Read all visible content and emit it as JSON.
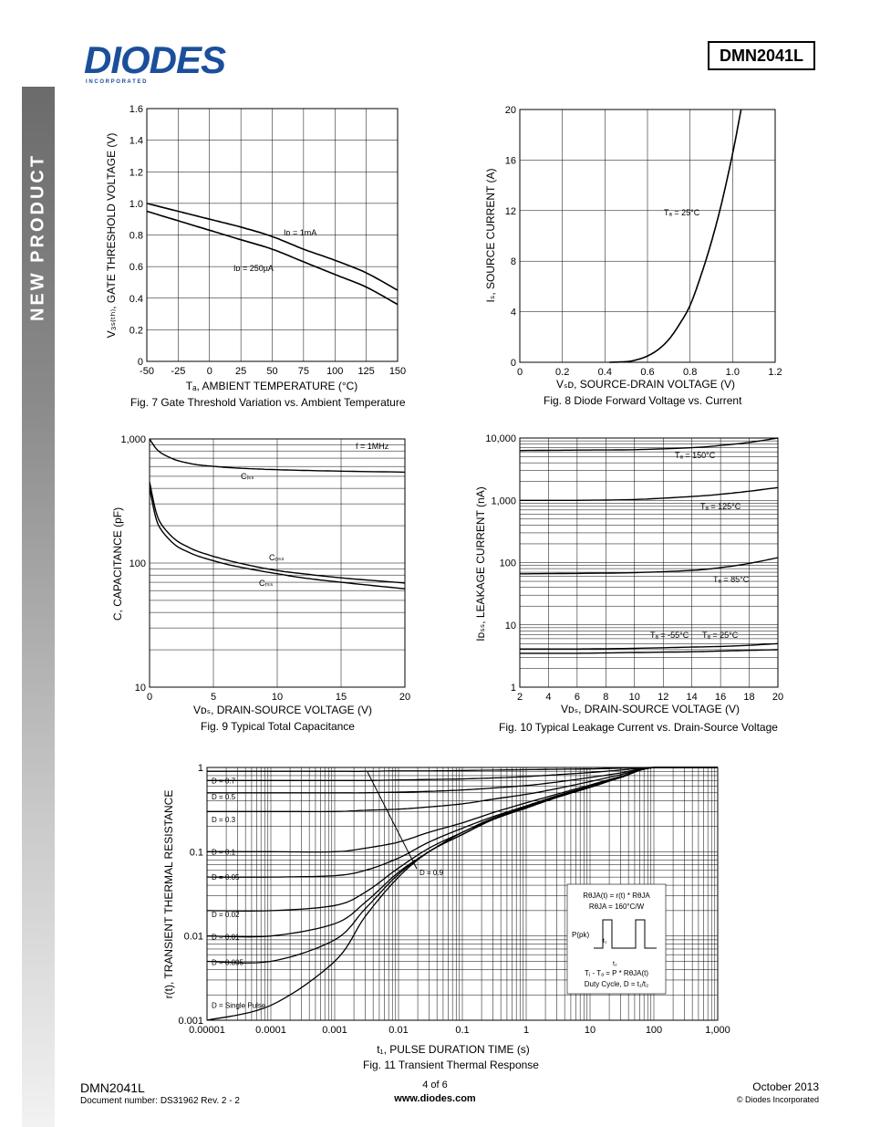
{
  "header": {
    "logo_text": "DIODES",
    "logo_sub": "I N C O R P O R A T E D",
    "part_number": "DMN2041L"
  },
  "sidebar": {
    "label": "NEW PRODUCT"
  },
  "figures": {
    "fig7": {
      "caption": "Fig. 7 Gate Threshold Variation vs. Ambient Temperature",
      "xlabel": "Tₐ, AMBIENT TEMPERATURE (°C)",
      "ylabel": "V₃ₛ₍ₜₕ₎, GATE THRESHOLD VOLTAGE (V)",
      "anno1": "Iᴅ = 1mA",
      "anno2": "Iᴅ = 250µA"
    },
    "fig8": {
      "caption": "Fig. 8 Diode Forward Voltage vs. Current",
      "xlabel": "Vₛᴅ, SOURCE-DRAIN VOLTAGE (V)",
      "ylabel": "Iₛ, SOURCE CURRENT (A)",
      "anno1": "Tₐ = 25°C"
    },
    "fig9": {
      "caption": "Fig. 9 Typical Total Capacitance",
      "xlabel": "Vᴅₛ, DRAIN-SOURCE VOLTAGE (V)",
      "ylabel": "C, CAPACITANCE (pF)",
      "anno_f": "f = 1MHz",
      "anno_ciss": "Cᵢₛₛ",
      "anno_coss": "Cₒₛₛ",
      "anno_crss": "Cᵣₛₛ"
    },
    "fig10": {
      "caption": "Fig. 10 Typical Leakage Current vs. Drain-Source Voltage",
      "xlabel": "Vᴅₛ, DRAIN-SOURCE VOLTAGE (V)",
      "ylabel": "Iᴅₛₛ, LEAKAGE CURRENT (nA)",
      "anno150": "Tₐ = 150°C",
      "anno125": "Tₐ = 125°C",
      "anno85": "Tₐ = 85°C",
      "anno_m55": "Tₐ = -55°C",
      "anno25": "Tₐ = 25°C"
    },
    "fig11": {
      "caption": "Fig. 11 Transient Thermal Response",
      "xlabel": "t₁, PULSE DURATION TIME (s)",
      "ylabel": "r(t), TRANSIENT THERMAL RESISTANCE",
      "box_l1": "RθJA(t) = r(t) * RθJA",
      "box_l2": "RθJA = 160°C/W",
      "box_ppk": "P(pk)",
      "box_t1": "t₁",
      "box_t2": "t₂",
      "box_l3": "Tⱼ - Tₐ = P * RθJA(t)",
      "box_l4": "Duty Cycle, D = t₁/t₂"
    }
  },
  "chart_data": [
    {
      "type": "line",
      "id": "fig7",
      "x": [
        -50,
        -25,
        0,
        25,
        50,
        75,
        100,
        125,
        150
      ],
      "xlim": [
        -50,
        150
      ],
      "ylim": [
        0,
        1.6
      ],
      "xticks": [
        "-50",
        "-25",
        "0",
        "25",
        "50",
        "75",
        "100",
        "125",
        "150"
      ],
      "yticks": [
        "0",
        "0.2",
        "0.4",
        "0.6",
        "0.8",
        "1.0",
        "1.2",
        "1.4",
        "1.6"
      ],
      "series": [
        {
          "name": "Iᴅ = 1mA",
          "values": [
            1.0,
            0.95,
            0.9,
            0.85,
            0.79,
            0.71,
            0.64,
            0.56,
            0.45
          ]
        },
        {
          "name": "Iᴅ = 250µA",
          "values": [
            0.95,
            0.89,
            0.83,
            0.77,
            0.71,
            0.63,
            0.55,
            0.47,
            0.36
          ]
        }
      ],
      "grid": true
    },
    {
      "type": "line",
      "id": "fig8",
      "xlim": [
        0,
        1.2
      ],
      "ylim": [
        0,
        20
      ],
      "xticks": [
        "0",
        "0.2",
        "0.4",
        "0.6",
        "0.8",
        "1.0",
        "1.2"
      ],
      "yticks": [
        "0",
        "4",
        "8",
        "12",
        "16",
        "20"
      ],
      "series": [
        {
          "name": "Tₐ = 25°C",
          "x": [
            0.42,
            0.5,
            0.55,
            0.6,
            0.65,
            0.7,
            0.75,
            0.8,
            0.85,
            0.9,
            0.95,
            1.0,
            1.04
          ],
          "values": [
            0,
            0.05,
            0.2,
            0.5,
            1.0,
            1.8,
            3.0,
            4.5,
            6.8,
            9.5,
            12.7,
            16.5,
            20
          ]
        }
      ],
      "grid": true
    },
    {
      "type": "line",
      "id": "fig9",
      "yscale": "log",
      "xlim": [
        0,
        20
      ],
      "ylim": [
        10,
        1000
      ],
      "xticks": [
        "0",
        "5",
        "10",
        "15",
        "20"
      ],
      "yticks": [
        "10",
        "100",
        "1,000"
      ],
      "x": [
        0,
        0.5,
        1,
        2,
        3,
        4,
        6,
        8,
        10,
        12,
        15,
        20
      ],
      "series": [
        {
          "name": "Cᵢₛₛ",
          "values": [
            1000,
            840,
            760,
            680,
            640,
            615,
            590,
            575,
            565,
            558,
            550,
            540
          ]
        },
        {
          "name": "Cₒₛₛ",
          "values": [
            450,
            260,
            200,
            155,
            135,
            122,
            106,
            95,
            87,
            82,
            76,
            69
          ]
        },
        {
          "name": "Cᵣₛₛ",
          "values": [
            400,
            230,
            180,
            140,
            123,
            112,
            98,
            89,
            82,
            76,
            70,
            62
          ]
        }
      ],
      "grid": true
    },
    {
      "type": "line",
      "id": "fig10",
      "yscale": "log",
      "xlim": [
        2,
        20
      ],
      "ylim": [
        1,
        10000
      ],
      "xticks": [
        "2",
        "4",
        "6",
        "8",
        "10",
        "12",
        "14",
        "16",
        "18",
        "20"
      ],
      "yticks": [
        "1",
        "10",
        "100",
        "1,000",
        "10,000"
      ],
      "x": [
        2,
        6,
        10,
        14,
        16,
        18,
        20
      ],
      "series": [
        {
          "name": "Tₐ = 150°C",
          "values": [
            6300,
            6400,
            6500,
            7000,
            7600,
            8500,
            10000
          ]
        },
        {
          "name": "Tₐ = 125°C",
          "values": [
            1000,
            1000,
            1030,
            1150,
            1250,
            1400,
            1600
          ]
        },
        {
          "name": "Tₐ = 85°C",
          "values": [
            66,
            67,
            69,
            75,
            83,
            97,
            120
          ]
        },
        {
          "name": "Tₐ = 25°C",
          "values": [
            4.1,
            4.1,
            4.2,
            4.4,
            4.5,
            4.7,
            5.0
          ]
        },
        {
          "name": "Tₐ = -55°C",
          "values": [
            3.5,
            3.5,
            3.6,
            3.7,
            3.8,
            3.9,
            4.0
          ]
        }
      ],
      "grid": true
    },
    {
      "type": "line",
      "id": "fig11",
      "xscale": "log",
      "yscale": "log",
      "xlim": [
        1e-05,
        1000
      ],
      "ylim": [
        0.001,
        1
      ],
      "xticks": [
        "0.00001",
        "0.0001",
        "0.001",
        "0.01",
        "0.1",
        "1",
        "10",
        "100",
        "1,000"
      ],
      "yticks": [
        "0.001",
        "0.01",
        "0.1",
        "1"
      ],
      "x": [
        1e-05,
        0.0001,
        0.001,
        0.003,
        0.01,
        0.03,
        0.1,
        0.3,
        1,
        3,
        10,
        30,
        100,
        1000
      ],
      "series": [
        {
          "name": "D = 0.9",
          "values": [
            0.9,
            0.9,
            0.9,
            0.9,
            0.91,
            0.91,
            0.92,
            0.93,
            0.94,
            0.95,
            0.96,
            0.98,
            1.0,
            1.0
          ]
        },
        {
          "name": "D = 0.7",
          "values": [
            0.7,
            0.7,
            0.7,
            0.7,
            0.71,
            0.72,
            0.73,
            0.75,
            0.78,
            0.82,
            0.87,
            0.93,
            1.0,
            1.0
          ]
        },
        {
          "name": "D = 0.5",
          "values": [
            0.5,
            0.5,
            0.5,
            0.5,
            0.51,
            0.52,
            0.54,
            0.57,
            0.61,
            0.67,
            0.76,
            0.86,
            1.0,
            1.0
          ]
        },
        {
          "name": "D = 0.3",
          "values": [
            0.3,
            0.3,
            0.3,
            0.31,
            0.32,
            0.34,
            0.37,
            0.42,
            0.48,
            0.56,
            0.68,
            0.82,
            1.0,
            1.0
          ]
        },
        {
          "name": "D = 0.1",
          "values": [
            0.1,
            0.1,
            0.1,
            0.11,
            0.13,
            0.17,
            0.22,
            0.29,
            0.38,
            0.48,
            0.62,
            0.78,
            1.0,
            1.0
          ]
        },
        {
          "name": "D = 0.05",
          "values": [
            0.05,
            0.05,
            0.052,
            0.06,
            0.084,
            0.13,
            0.19,
            0.26,
            0.35,
            0.46,
            0.6,
            0.77,
            1.0,
            1.0
          ]
        },
        {
          "name": "D = 0.02",
          "values": [
            0.02,
            0.02,
            0.023,
            0.033,
            0.064,
            0.11,
            0.17,
            0.25,
            0.34,
            0.45,
            0.59,
            0.76,
            1.0,
            1.0
          ]
        },
        {
          "name": "D = 0.01",
          "values": [
            0.01,
            0.01,
            0.014,
            0.025,
            0.057,
            0.1,
            0.17,
            0.24,
            0.34,
            0.45,
            0.59,
            0.76,
            1.0,
            1.0
          ]
        },
        {
          "name": "D = 0.005",
          "values": [
            0.005,
            0.005,
            0.009,
            0.021,
            0.054,
            0.1,
            0.16,
            0.24,
            0.33,
            0.44,
            0.58,
            0.76,
            1.0,
            1.0
          ]
        },
        {
          "name": "D = Single Pulse",
          "values": [
            0.001,
            0.0015,
            0.005,
            0.017,
            0.05,
            0.1,
            0.16,
            0.24,
            0.33,
            0.44,
            0.58,
            0.76,
            1.0,
            1.0
          ]
        }
      ],
      "grid": true
    }
  ],
  "footer": {
    "part": "DMN2041L",
    "docnum": "Document number: DS31962 Rev. 2 - 2",
    "page": "4 of 6",
    "url": "www.diodes.com",
    "date": "October 2013",
    "copyright": "© Diodes Incorporated"
  }
}
